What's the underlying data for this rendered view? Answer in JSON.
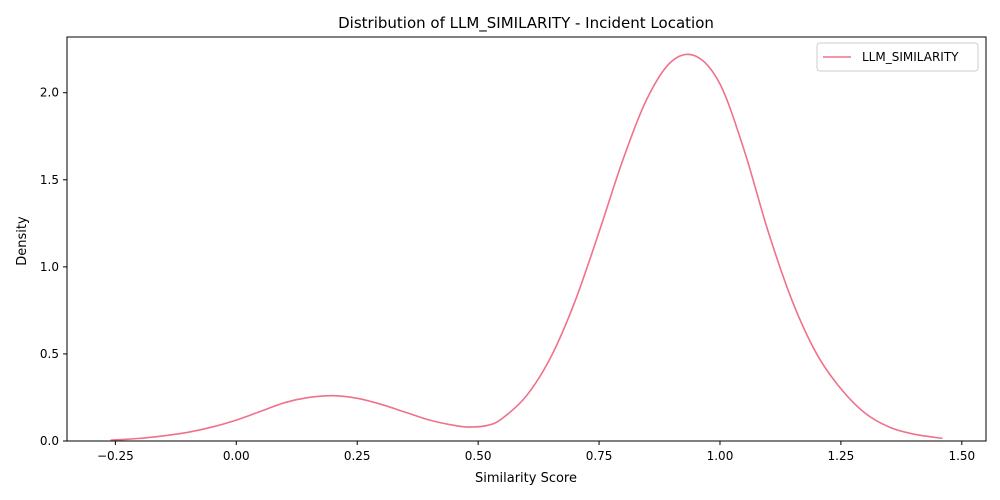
{
  "chart_data": {
    "type": "line",
    "title": "Distribution of LLM_SIMILARITY - Incident Location",
    "xlabel": "Similarity Score",
    "ylabel": "Density",
    "xlim": [
      -0.35,
      1.55
    ],
    "ylim": [
      0,
      2.32
    ],
    "xticks": [
      -0.25,
      0.0,
      0.25,
      0.5,
      0.75,
      1.0,
      1.25,
      1.5
    ],
    "xtick_labels": [
      "−0.25",
      "0.00",
      "0.25",
      "0.50",
      "0.75",
      "1.00",
      "1.25",
      "1.50"
    ],
    "yticks": [
      0.0,
      0.5,
      1.0,
      1.5,
      2.0
    ],
    "ytick_labels": [
      "0.0",
      "0.5",
      "1.0",
      "1.5",
      "2.0"
    ],
    "grid": false,
    "legend_position": "top-right",
    "series": [
      {
        "name": "LLM_SIMILARITY",
        "color": "#f0718a",
        "x": [
          -0.26,
          -0.2,
          -0.15,
          -0.1,
          -0.05,
          0.0,
          0.05,
          0.1,
          0.15,
          0.2,
          0.25,
          0.3,
          0.35,
          0.4,
          0.45,
          0.48,
          0.52,
          0.55,
          0.6,
          0.65,
          0.7,
          0.75,
          0.8,
          0.85,
          0.9,
          0.95,
          1.0,
          1.05,
          1.1,
          1.15,
          1.2,
          1.25,
          1.3,
          1.35,
          1.4,
          1.46
        ],
        "y": [
          0.005,
          0.015,
          0.03,
          0.05,
          0.08,
          0.12,
          0.17,
          0.22,
          0.25,
          0.26,
          0.245,
          0.21,
          0.165,
          0.12,
          0.09,
          0.08,
          0.09,
          0.13,
          0.26,
          0.48,
          0.8,
          1.2,
          1.62,
          1.97,
          2.18,
          2.21,
          2.05,
          1.67,
          1.2,
          0.8,
          0.5,
          0.3,
          0.16,
          0.08,
          0.04,
          0.015
        ]
      }
    ]
  }
}
